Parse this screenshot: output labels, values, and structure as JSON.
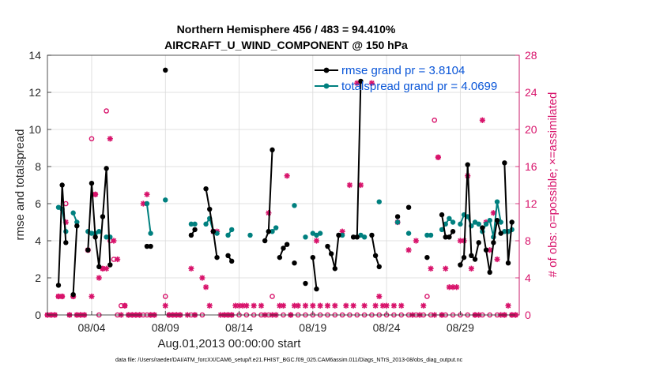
{
  "chart_data": {
    "type": "line",
    "title_line1": "Northern Hemisphere 456 / 483 = 94.410%",
    "title_line2": "AIRCRAFT_U_WIND_COMPONENT @ 150 hPa",
    "xlabel": "Aug.01,2013 00:00:00 start",
    "ylabel_left": "rmse and totalspread",
    "ylabel_right": "# of obs: o=possible; ×=assimilated",
    "footer": "data file: /Users/raeder/DAI/ATM_forcXX/CAM6_setup/f.e21.FHIST_BGC.f09_025.CAM6assim.011/Diags_NTrS_2013-08/obs_diag_output.nc",
    "x_unit": "days since Aug 01 2013",
    "xlim": [
      0,
      32
    ],
    "ylim_left": [
      0,
      14
    ],
    "ylim_right": [
      0,
      28
    ],
    "x_ticks": [
      {
        "x": 3,
        "label": "08/04"
      },
      {
        "x": 8,
        "label": "08/09"
      },
      {
        "x": 13,
        "label": "08/14"
      },
      {
        "x": 18,
        "label": "08/19"
      },
      {
        "x": 23,
        "label": "08/24"
      },
      {
        "x": 28,
        "label": "08/29"
      }
    ],
    "y_ticks_left": [
      0,
      2,
      4,
      6,
      8,
      10,
      12,
      14
    ],
    "y_ticks_right": [
      0,
      4,
      8,
      12,
      16,
      20,
      24,
      28
    ],
    "colors": {
      "rmse": "#000000",
      "spread": "#00807f",
      "obs": "#d8136b",
      "legend_text": "#0a56d8"
    },
    "legend": [
      {
        "name": "rmse grand pr = 3.8104",
        "color": "#000000"
      },
      {
        "name": "totalspread grand pr = 4.0699",
        "color": "#00807f"
      }
    ],
    "series": [
      {
        "name": "rmse",
        "color": "#000000",
        "segments": [
          [
            [
              0.75,
              1.6
            ],
            [
              1.0,
              7.0
            ],
            [
              1.25,
              3.9
            ]
          ],
          [
            [
              1.75,
              1.1
            ],
            [
              2.0,
              4.8
            ]
          ],
          [
            [
              2.75,
              3.5
            ],
            [
              3.0,
              7.1
            ],
            [
              3.25,
              4.2
            ],
            [
              3.5,
              2.6
            ],
            [
              3.75,
              5.3
            ],
            [
              4.0,
              7.9
            ],
            [
              4.25,
              2.7
            ]
          ],
          [
            [
              6.75,
              3.7
            ],
            [
              7.0,
              3.7
            ]
          ],
          [
            [
              8.0,
              13.2
            ]
          ],
          [
            [
              9.75,
              4.3
            ],
            [
              10.0,
              4.6
            ]
          ],
          [
            [
              10.75,
              6.8
            ],
            [
              11.0,
              5.7
            ],
            [
              11.25,
              4.5
            ],
            [
              11.5,
              3.1
            ]
          ],
          [
            [
              12.25,
              3.2
            ],
            [
              12.5,
              2.9
            ]
          ],
          [
            [
              14.75,
              4.0
            ],
            [
              15.0,
              4.5
            ],
            [
              15.25,
              8.9
            ]
          ],
          [
            [
              15.75,
              3.1
            ],
            [
              16.0,
              3.6
            ],
            [
              16.25,
              3.8
            ]
          ],
          [
            [
              16.75,
              2.8
            ]
          ],
          [
            [
              17.5,
              1.7
            ]
          ],
          [
            [
              18.0,
              3.1
            ],
            [
              18.25,
              1.4
            ]
          ],
          [
            [
              19.0,
              3.7
            ],
            [
              19.25,
              3.3
            ],
            [
              19.5,
              2.5
            ],
            [
              19.75,
              4.3
            ]
          ],
          [
            [
              20.75,
              4.2
            ],
            [
              21.0,
              4.2
            ],
            [
              21.25,
              12.6
            ]
          ],
          [
            [
              22.0,
              4.3
            ],
            [
              22.25,
              3.2
            ],
            [
              22.5,
              2.6
            ]
          ],
          [
            [
              23.75,
              5.3
            ]
          ],
          [
            [
              24.5,
              5.8
            ]
          ],
          [
            [
              25.75,
              3.1
            ]
          ],
          [
            [
              26.75,
              5.4
            ],
            [
              27.0,
              4.2
            ],
            [
              27.25,
              4.2
            ],
            [
              27.5,
              4.5
            ]
          ],
          [
            [
              28.0,
              2.7
            ],
            [
              28.25,
              3.1
            ],
            [
              28.5,
              8.1
            ],
            [
              28.75,
              3.2
            ],
            [
              29.0,
              3.0
            ],
            [
              29.25,
              3.9
            ]
          ],
          [
            [
              29.5,
              4.7
            ],
            [
              29.75,
              3.5
            ],
            [
              30.0,
              2.3
            ],
            [
              30.25,
              3.9
            ],
            [
              30.5,
              5.1
            ],
            [
              30.75,
              4.4
            ]
          ],
          [
            [
              31.0,
              8.2
            ],
            [
              31.25,
              2.8
            ],
            [
              31.5,
              5.0
            ]
          ]
        ]
      },
      {
        "name": "totalspread",
        "color": "#00807f",
        "segments": [
          [
            [
              0.75,
              5.8
            ],
            [
              1.0,
              5.7
            ],
            [
              1.25,
              4.5
            ]
          ],
          [
            [
              1.75,
              5.5
            ],
            [
              2.0,
              5.0
            ]
          ],
          [
            [
              2.75,
              4.5
            ],
            [
              3.0,
              4.4
            ],
            [
              3.25,
              4.4
            ],
            [
              3.5,
              4.5
            ]
          ],
          [
            [
              4.0,
              4.2
            ],
            [
              4.25,
              4.2
            ]
          ],
          [
            [
              6.75,
              6.0
            ],
            [
              7.0,
              4.4
            ]
          ],
          [
            [
              8.0,
              6.2
            ]
          ],
          [
            [
              9.75,
              4.9
            ],
            [
              10.0,
              4.9
            ]
          ],
          [
            [
              10.75,
              4.9
            ],
            [
              11.0,
              5.2
            ],
            [
              11.25,
              4.5
            ],
            [
              11.5,
              4.4
            ]
          ],
          [
            [
              12.25,
              4.3
            ],
            [
              12.5,
              4.6
            ]
          ],
          [
            [
              13.75,
              4.3
            ]
          ],
          [
            [
              15.0,
              4.5
            ],
            [
              15.25,
              4.5
            ],
            [
              15.5,
              4.7
            ]
          ],
          [
            [
              16.75,
              5.9
            ]
          ],
          [
            [
              17.5,
              4.2
            ]
          ],
          [
            [
              18.0,
              4.4
            ],
            [
              18.25,
              4.3
            ],
            [
              18.5,
              4.4
            ]
          ],
          [
            [
              20.0,
              4.3
            ]
          ],
          [
            [
              21.25,
              4.3
            ],
            [
              21.5,
              4.2
            ]
          ],
          [
            [
              22.5,
              6.1
            ]
          ],
          [
            [
              23.75,
              5.0
            ]
          ],
          [
            [
              24.5,
              4.4
            ]
          ],
          [
            [
              25.75,
              4.3
            ],
            [
              26.0,
              4.3
            ]
          ],
          [
            [
              26.75,
              4.6
            ],
            [
              27.0,
              4.9
            ],
            [
              27.25,
              5.2
            ],
            [
              27.5,
              5.0
            ]
          ],
          [
            [
              28.0,
              4.9
            ],
            [
              28.25,
              5.4
            ],
            [
              28.5,
              5.3
            ],
            [
              28.75,
              4.8
            ],
            [
              29.0,
              5.0
            ],
            [
              29.25,
              4.9
            ]
          ],
          [
            [
              29.5,
              4.5
            ],
            [
              29.75,
              4.9
            ],
            [
              30.0,
              5.1
            ],
            [
              30.25,
              4.2
            ],
            [
              30.5,
              6.1
            ],
            [
              30.75,
              5.0
            ]
          ],
          [
            [
              31.0,
              4.5
            ],
            [
              31.25,
              4.5
            ],
            [
              31.5,
              4.6
            ]
          ]
        ]
      }
    ],
    "obs_possible": [
      [
        0,
        0
      ],
      [
        0.25,
        0
      ],
      [
        0.5,
        0
      ],
      [
        0.75,
        2
      ],
      [
        1.0,
        2
      ],
      [
        1.25,
        12
      ],
      [
        1.5,
        0
      ],
      [
        1.75,
        2
      ],
      [
        2.0,
        0
      ],
      [
        2.25,
        0
      ],
      [
        2.5,
        0
      ],
      [
        2.75,
        7
      ],
      [
        3.0,
        19
      ],
      [
        3.25,
        13
      ],
      [
        3.5,
        0
      ],
      [
        3.75,
        5
      ],
      [
        4.0,
        22
      ],
      [
        4.25,
        8
      ],
      [
        4.5,
        6
      ],
      [
        4.75,
        0
      ],
      [
        5.0,
        1
      ],
      [
        5.25,
        1
      ],
      [
        5.5,
        0
      ],
      [
        5.75,
        0
      ],
      [
        6.0,
        0
      ],
      [
        6.25,
        0
      ],
      [
        6.5,
        0
      ],
      [
        6.75,
        0
      ],
      [
        7.0,
        0
      ],
      [
        7.25,
        0
      ],
      [
        8.0,
        2
      ],
      [
        8.25,
        0
      ],
      [
        8.5,
        0
      ],
      [
        8.75,
        0
      ],
      [
        9.0,
        0
      ],
      [
        9.75,
        0
      ],
      [
        10.0,
        0
      ],
      [
        10.5,
        0
      ],
      [
        12.0,
        0
      ],
      [
        12.25,
        0
      ],
      [
        12.5,
        0
      ],
      [
        13.0,
        0
      ],
      [
        13.5,
        0
      ],
      [
        14.0,
        0
      ],
      [
        14.5,
        0
      ],
      [
        15.0,
        0
      ],
      [
        15.25,
        2
      ],
      [
        16.0,
        0
      ],
      [
        16.5,
        0
      ],
      [
        17.0,
        0
      ],
      [
        17.5,
        0
      ],
      [
        18.0,
        0
      ],
      [
        18.5,
        0
      ],
      [
        19.0,
        0
      ],
      [
        19.5,
        0
      ],
      [
        20.0,
        0
      ],
      [
        20.5,
        0
      ],
      [
        21.0,
        0
      ],
      [
        21.5,
        0
      ],
      [
        22.0,
        0
      ],
      [
        22.5,
        0
      ],
      [
        23.0,
        0
      ],
      [
        23.5,
        0
      ],
      [
        24.0,
        0
      ],
      [
        24.5,
        0
      ],
      [
        25.0,
        0
      ],
      [
        25.5,
        0
      ],
      [
        25.75,
        2
      ],
      [
        26.0,
        0
      ],
      [
        26.25,
        21
      ],
      [
        26.5,
        17
      ],
      [
        26.75,
        0
      ],
      [
        27.0,
        0
      ],
      [
        27.5,
        0
      ],
      [
        28.0,
        0
      ],
      [
        28.5,
        0
      ],
      [
        29.0,
        0
      ],
      [
        29.5,
        0
      ],
      [
        30.0,
        0
      ],
      [
        30.5,
        0
      ],
      [
        31.0,
        0
      ],
      [
        31.5,
        0
      ],
      [
        31.75,
        0
      ]
    ],
    "obs_assimilated": [
      [
        0,
        0
      ],
      [
        0.25,
        0
      ],
      [
        0.5,
        0
      ],
      [
        0.75,
        2
      ],
      [
        1.0,
        2
      ],
      [
        1.25,
        10
      ],
      [
        1.5,
        0
      ],
      [
        1.75,
        2
      ],
      [
        2.0,
        0
      ],
      [
        2.25,
        0
      ],
      [
        2.5,
        0
      ],
      [
        2.75,
        7
      ],
      [
        3.0,
        2
      ],
      [
        3.25,
        13
      ],
      [
        3.5,
        4
      ],
      [
        3.75,
        5
      ],
      [
        4.0,
        5
      ],
      [
        4.25,
        19
      ],
      [
        4.5,
        8
      ],
      [
        4.75,
        6
      ],
      [
        5.0,
        0
      ],
      [
        5.25,
        1
      ],
      [
        5.5,
        0
      ],
      [
        5.75,
        0
      ],
      [
        6.0,
        0
      ],
      [
        6.25,
        0
      ],
      [
        6.5,
        12
      ],
      [
        6.75,
        13
      ],
      [
        7.0,
        0
      ],
      [
        7.25,
        0
      ],
      [
        8.0,
        1
      ],
      [
        8.25,
        0
      ],
      [
        8.5,
        0
      ],
      [
        8.75,
        0
      ],
      [
        9.0,
        0
      ],
      [
        9.5,
        0
      ],
      [
        9.75,
        5
      ],
      [
        10.0,
        0
      ],
      [
        10.5,
        4
      ],
      [
        10.75,
        3
      ],
      [
        11.0,
        1
      ],
      [
        11.25,
        9
      ],
      [
        11.5,
        9
      ],
      [
        11.75,
        0
      ],
      [
        12.0,
        0
      ],
      [
        12.25,
        0
      ],
      [
        12.5,
        0
      ],
      [
        12.75,
        1
      ],
      [
        13.0,
        1
      ],
      [
        13.25,
        1
      ],
      [
        13.5,
        1
      ],
      [
        14.0,
        1
      ],
      [
        14.5,
        1
      ],
      [
        14.75,
        0
      ],
      [
        15.0,
        11
      ],
      [
        15.25,
        0
      ],
      [
        15.5,
        0
      ],
      [
        15.75,
        1
      ],
      [
        16.0,
        1
      ],
      [
        16.25,
        15
      ],
      [
        16.5,
        0
      ],
      [
        16.75,
        1
      ],
      [
        17.0,
        1
      ],
      [
        17.5,
        1
      ],
      [
        18.0,
        1
      ],
      [
        18.25,
        8
      ],
      [
        18.5,
        1
      ],
      [
        19.0,
        1
      ],
      [
        19.5,
        1
      ],
      [
        20.0,
        9
      ],
      [
        20.25,
        1
      ],
      [
        20.5,
        14
      ],
      [
        20.75,
        1
      ],
      [
        21.0,
        25
      ],
      [
        21.25,
        14
      ],
      [
        21.5,
        1
      ],
      [
        22.0,
        25
      ],
      [
        22.25,
        1
      ],
      [
        22.5,
        2
      ],
      [
        22.75,
        1
      ],
      [
        23.0,
        1
      ],
      [
        23.5,
        1
      ],
      [
        23.75,
        10
      ],
      [
        24.0,
        1
      ],
      [
        24.5,
        7
      ],
      [
        24.75,
        0
      ],
      [
        25.0,
        8
      ],
      [
        25.25,
        0
      ],
      [
        25.5,
        1
      ],
      [
        26.0,
        5
      ],
      [
        26.25,
        0
      ],
      [
        26.5,
        17
      ],
      [
        26.75,
        0
      ],
      [
        27.0,
        5
      ],
      [
        27.25,
        3
      ],
      [
        27.5,
        3
      ],
      [
        27.75,
        3
      ],
      [
        28.0,
        8
      ],
      [
        28.25,
        8
      ],
      [
        28.5,
        15
      ],
      [
        28.75,
        5
      ],
      [
        29.0,
        0
      ],
      [
        29.25,
        0
      ],
      [
        29.5,
        21
      ],
      [
        29.75,
        10
      ],
      [
        30.0,
        7
      ],
      [
        30.25,
        11
      ],
      [
        30.5,
        6
      ],
      [
        30.75,
        0
      ],
      [
        31.0,
        0
      ],
      [
        31.25,
        1
      ],
      [
        31.5,
        0
      ],
      [
        31.75,
        0
      ]
    ]
  }
}
